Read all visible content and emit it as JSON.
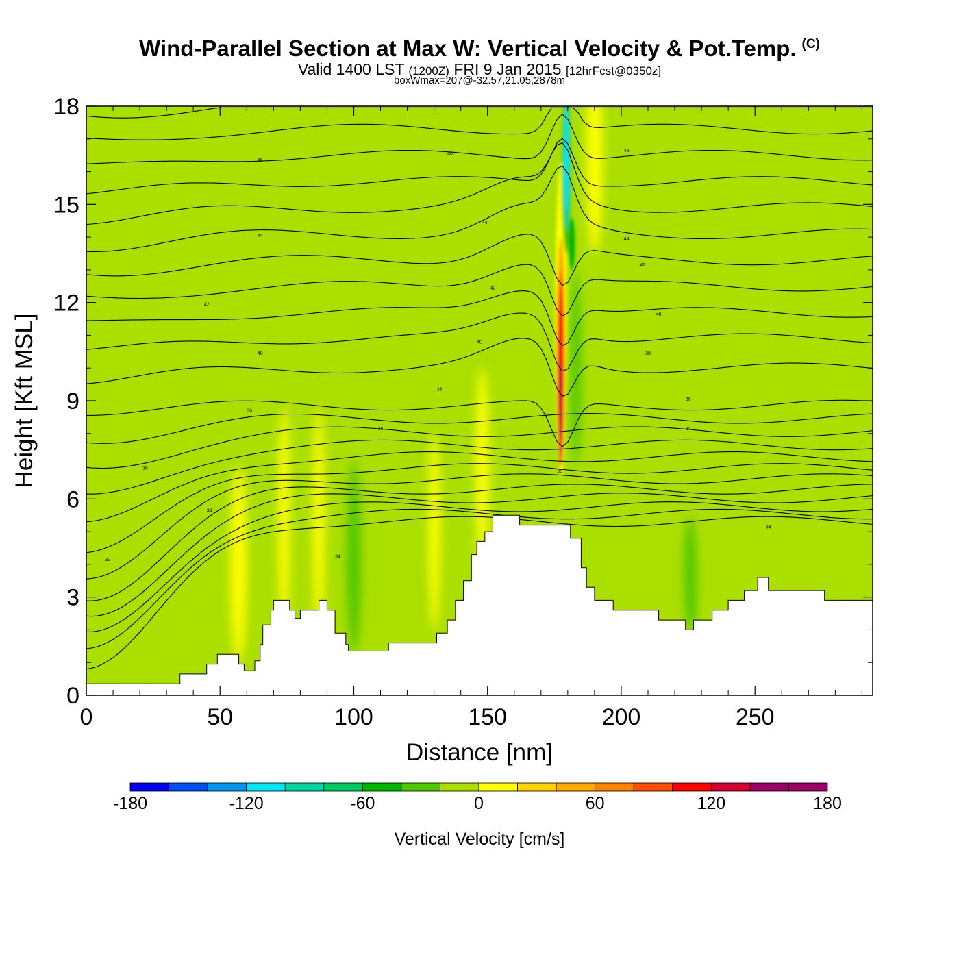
{
  "header": {
    "title": "Wind-Parallel Section at Max W: Vertical Velocity & Pot.Temp.",
    "copyright": "(C)",
    "valid_prefix": "Valid 1400 LST",
    "utc": "(1200Z)",
    "valid_date": "FRI 9 Jan 2015",
    "forecast": "[12hrFcst@0350z]",
    "box_info": "boxWmax=207@-32.57,21.05,2878m"
  },
  "colors": {
    "background_field": "#aadf00",
    "terrain_fill": "#ffffff",
    "contour_line": "#000000"
  },
  "chart_data": {
    "type": "cross-section",
    "title": "Wind-Parallel Section at Max W: Vertical Velocity & Pot.Temp.",
    "xlabel": "Distance [nm]",
    "ylabel": "Height [Kft MSL]",
    "xlim": [
      0,
      294
    ],
    "ylim": [
      0,
      18
    ],
    "x_ticks": [
      {
        "value": 0,
        "label": "0"
      },
      {
        "value": 50,
        "label": "50"
      },
      {
        "value": 100,
        "label": "100"
      },
      {
        "value": 150,
        "label": "150"
      },
      {
        "value": 200,
        "label": "200"
      },
      {
        "value": 250,
        "label": "250"
      }
    ],
    "y_ticks": [
      {
        "value": 0,
        "label": "0"
      },
      {
        "value": 3,
        "label": "3"
      },
      {
        "value": 6,
        "label": "6"
      },
      {
        "value": 9,
        "label": "9"
      },
      {
        "value": 12,
        "label": "12"
      },
      {
        "value": 15,
        "label": "15"
      },
      {
        "value": 18,
        "label": "18"
      }
    ],
    "terrain": [
      [
        0,
        0.35
      ],
      [
        34,
        0.35
      ],
      [
        35,
        0.65
      ],
      [
        43,
        0.65
      ],
      [
        45,
        0.95
      ],
      [
        48,
        0.95
      ],
      [
        49,
        1.25
      ],
      [
        56,
        1.25
      ],
      [
        57,
        0.95
      ],
      [
        59,
        0.75
      ],
      [
        62,
        0.75
      ],
      [
        63,
        1.05
      ],
      [
        65,
        1.55
      ],
      [
        66,
        2.15
      ],
      [
        69,
        2.6
      ],
      [
        70,
        2.9
      ],
      [
        75,
        2.9
      ],
      [
        76,
        2.6
      ],
      [
        78,
        2.35
      ],
      [
        80,
        2.6
      ],
      [
        86,
        2.6
      ],
      [
        87,
        2.9
      ],
      [
        90,
        2.6
      ],
      [
        93,
        1.9
      ],
      [
        97,
        1.55
      ],
      [
        98,
        1.35
      ],
      [
        110,
        1.35
      ],
      [
        113,
        1.6
      ],
      [
        129,
        1.6
      ],
      [
        131,
        1.9
      ],
      [
        135,
        2.3
      ],
      [
        138,
        2.9
      ],
      [
        141,
        3.5
      ],
      [
        144,
        4.3
      ],
      [
        146,
        4.7
      ],
      [
        149,
        5.0
      ],
      [
        152,
        5.5
      ],
      [
        160,
        5.5
      ],
      [
        162,
        5.2
      ],
      [
        180,
        5.2
      ],
      [
        181,
        4.8
      ],
      [
        185,
        3.9
      ],
      [
        187,
        3.3
      ],
      [
        190,
        2.9
      ],
      [
        197,
        2.6
      ],
      [
        211,
        2.6
      ],
      [
        214,
        2.3
      ],
      [
        223,
        2.3
      ],
      [
        224,
        2.0
      ],
      [
        227,
        2.3
      ],
      [
        233,
        2.3
      ],
      [
        234,
        2.6
      ],
      [
        240,
        2.9
      ],
      [
        246,
        3.2
      ],
      [
        251,
        3.6
      ],
      [
        255,
        3.2
      ],
      [
        262,
        3.2
      ],
      [
        276,
        2.9
      ],
      [
        294,
        2.9
      ]
    ],
    "colorbar": {
      "label": "Vertical Velocity [cm/s]",
      "min": -180,
      "max": 180,
      "step": 20,
      "tick_labels": [
        "-180",
        "-120",
        "-60",
        "0",
        "60",
        "120",
        "180"
      ],
      "colors": [
        "#0000f0",
        "#0050f0",
        "#0096f0",
        "#00e6f0",
        "#00d2a0",
        "#00c864",
        "#00b400",
        "#50c800",
        "#aadf00",
        "#ffff00",
        "#ffd200",
        "#ffaa00",
        "#ff8200",
        "#ff5000",
        "#ff0000",
        "#d20032",
        "#9b0064"
      ]
    },
    "contour_labels": [
      {
        "x": 8,
        "y": 4.1,
        "text": "32"
      },
      {
        "x": 46,
        "y": 5.6,
        "text": "34"
      },
      {
        "x": 22,
        "y": 6.9,
        "text": "36"
      },
      {
        "x": 61,
        "y": 8.65,
        "text": "36"
      },
      {
        "x": 110,
        "y": 8.1,
        "text": "36"
      },
      {
        "x": 132,
        "y": 9.3,
        "text": "38"
      },
      {
        "x": 94,
        "y": 4.2,
        "text": "34"
      },
      {
        "x": 65,
        "y": 10.4,
        "text": "40"
      },
      {
        "x": 147,
        "y": 10.75,
        "text": "40"
      },
      {
        "x": 45,
        "y": 11.9,
        "text": "42"
      },
      {
        "x": 152,
        "y": 12.4,
        "text": "42"
      },
      {
        "x": 65,
        "y": 14.0,
        "text": "44"
      },
      {
        "x": 149,
        "y": 14.4,
        "text": "44"
      },
      {
        "x": 65,
        "y": 16.3,
        "text": "46"
      },
      {
        "x": 136,
        "y": 16.5,
        "text": "46"
      },
      {
        "x": 202,
        "y": 16.6,
        "text": "46"
      },
      {
        "x": 202,
        "y": 13.9,
        "text": "44"
      },
      {
        "x": 208,
        "y": 13.1,
        "text": "42"
      },
      {
        "x": 214,
        "y": 11.6,
        "text": "40"
      },
      {
        "x": 210,
        "y": 10.4,
        "text": "38"
      },
      {
        "x": 225,
        "y": 9.0,
        "text": "36"
      },
      {
        "x": 225,
        "y": 8.1,
        "text": "34"
      },
      {
        "x": 255,
        "y": 5.1,
        "text": "34"
      },
      {
        "x": 177,
        "y": 6.8,
        "text": "36"
      }
    ]
  }
}
